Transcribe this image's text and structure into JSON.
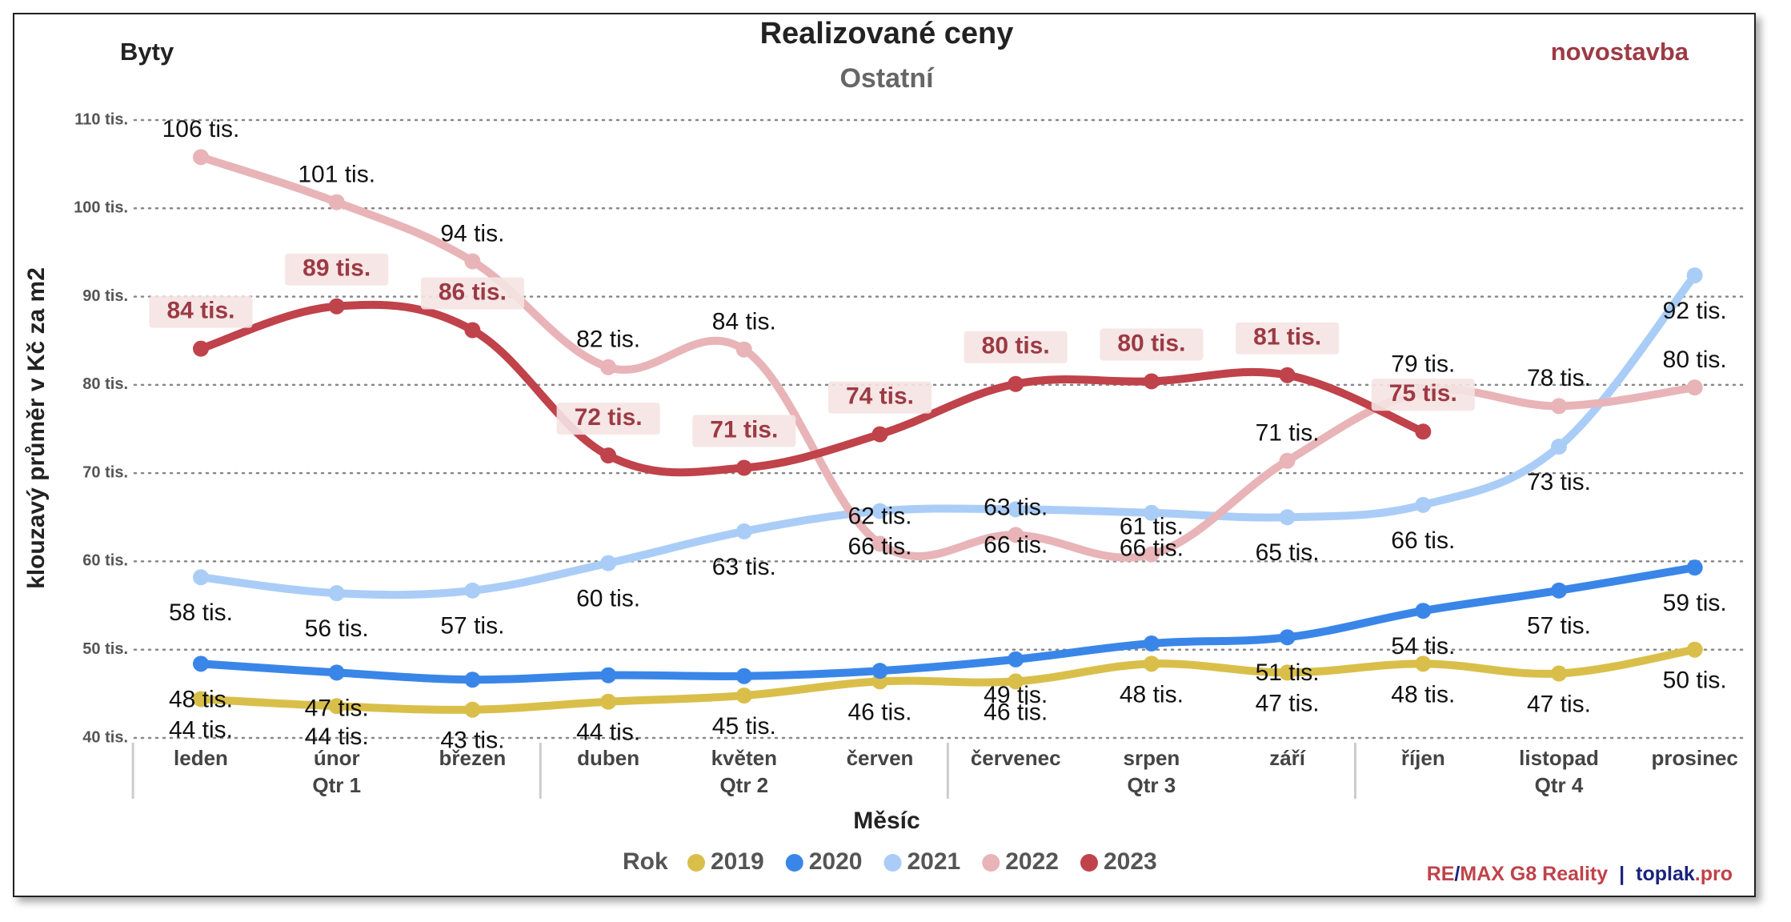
{
  "chart_data": {
    "type": "line",
    "title": "Realizované ceny",
    "subtitle": "Ostatní",
    "left_label": "Byty",
    "right_label": "novostavba",
    "x_label": "Měsíc",
    "y_label": "klouzavý průměr v Kč za m2",
    "legend_title": "Rok",
    "categories": [
      "leden",
      "únor",
      "březen",
      "duben",
      "květen",
      "červen",
      "červenec",
      "srpen",
      "září",
      "říjen",
      "listopad",
      "prosinec"
    ],
    "groups": [
      {
        "name": "Qtr 1",
        "size": 3
      },
      {
        "name": "Qtr 2",
        "size": 3
      },
      {
        "name": "Qtr 3",
        "size": 3
      },
      {
        "name": "Qtr 4",
        "size": 3
      }
    ],
    "ylim": [
      40,
      110
    ],
    "yticks": [
      {
        "value": 40,
        "label": "40 tis."
      },
      {
        "value": 50,
        "label": "50 tis."
      },
      {
        "value": 60,
        "label": "60 tis."
      },
      {
        "value": 70,
        "label": "70 tis."
      },
      {
        "value": 80,
        "label": "80 tis."
      },
      {
        "value": 90,
        "label": "90 tis."
      },
      {
        "value": 100,
        "label": "100 tis."
      },
      {
        "value": 110,
        "label": "110 tis."
      }
    ],
    "grid": true,
    "series": [
      {
        "name": "2019",
        "color": "#d9bf4a",
        "values": [
          44.4,
          43.6,
          43.2,
          44.1,
          44.8,
          46.4,
          46.4,
          48.4,
          47.4,
          48.4,
          47.3,
          50.0
        ],
        "value_labels": [
          "44 tis.",
          "44 tis.",
          "43 tis.",
          "44 tis.",
          "45 tis.",
          "46 tis.",
          "46 tis.",
          "48 tis.",
          "47 tis.",
          "48 tis.",
          "47 tis.",
          "50 tis."
        ]
      },
      {
        "name": "2020",
        "color": "#3a86e8",
        "values": [
          48.4,
          47.4,
          46.6,
          47.1,
          47.0,
          47.6,
          48.9,
          50.7,
          51.4,
          54.4,
          56.7,
          59.3
        ],
        "value_labels": [
          "48 tis.",
          "47 tis.",
          null,
          null,
          null,
          null,
          "49 tis.",
          null,
          "51 tis.",
          "54 tis.",
          "57 tis.",
          "59 tis."
        ]
      },
      {
        "name": "2021",
        "color": "#aacdf7",
        "values": [
          58.2,
          56.4,
          56.7,
          59.8,
          63.4,
          65.7,
          65.9,
          65.5,
          65.0,
          66.4,
          73.0,
          92.4
        ],
        "value_labels": [
          "58 tis.",
          "56 tis.",
          "57 tis.",
          "60 tis.",
          "63 tis.",
          "66 tis.",
          "66 tis.",
          "66 tis.",
          "65 tis.",
          "66 tis.",
          "73 tis.",
          "92 tis."
        ]
      },
      {
        "name": "2022",
        "color": "#e8b4b8",
        "values": [
          105.8,
          100.7,
          94.0,
          82.0,
          84.0,
          62.0,
          63.0,
          60.8,
          71.4,
          79.2,
          77.6,
          79.7
        ],
        "value_labels": [
          "106 tis.",
          "101 tis.",
          "94 tis.",
          "82 tis.",
          "84 tis.",
          "62 tis.",
          "63 tis.",
          "61 tis.",
          "71 tis.",
          "79 tis.",
          "78 tis.",
          "80 tis."
        ]
      },
      {
        "name": "2023",
        "color": "#c0424a",
        "values": [
          84.1,
          88.9,
          86.2,
          72.0,
          70.6,
          74.4,
          80.1,
          80.4,
          81.1,
          74.7,
          null,
          null
        ],
        "value_labels": [
          "84 tis.",
          "89 tis.",
          "86 tis.",
          "72 tis.",
          "71 tis.",
          "74 tis.",
          "80 tis.",
          "80 tis.",
          "81 tis.",
          "75 tis.",
          null,
          null
        ]
      }
    ],
    "footer": [
      {
        "text": "RE",
        "color": "#c0424a"
      },
      {
        "text": "/",
        "color": "#1a237e"
      },
      {
        "text": "MAX G8 Reality",
        "color": "#c0424a"
      },
      {
        "text": "|",
        "color": "#1a237e"
      },
      {
        "text": "toplak",
        "color": "#1a237e"
      },
      {
        "text": ".pro",
        "color": "#c0424a"
      }
    ]
  }
}
